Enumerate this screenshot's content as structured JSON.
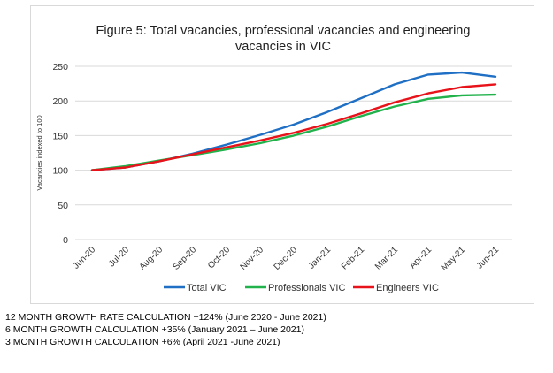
{
  "chart_data": {
    "type": "line",
    "title_line1": "Figure 5: Total vacancies, professional vacancies and engineering",
    "title_line2": "vacancies in VIC",
    "ylabel": "Vacancies indexed to 100",
    "xlabel": "",
    "categories": [
      "Jun-20",
      "Jul-20",
      "Aug-20",
      "Sep-20",
      "Oct-20",
      "Nov-20",
      "Dec-20",
      "Jan-21",
      "Feb-21",
      "Mar-21",
      "Apr-21",
      "May-21",
      "Jun-21"
    ],
    "ylim": [
      0,
      250
    ],
    "yticks": [
      "0",
      "50",
      "100",
      "150",
      "200",
      "250"
    ],
    "grid": true,
    "legend_position": "bottom",
    "series": [
      {
        "name": "Total VIC",
        "color": "#1f6fc5",
        "values": [
          100,
          104,
          113,
          124,
          137,
          151,
          166,
          184,
          204,
          224,
          238,
          241,
          235
        ]
      },
      {
        "name": "Professionals VIC",
        "color": "#22b24c",
        "values": [
          100,
          106,
          114,
          122,
          130,
          139,
          150,
          163,
          178,
          192,
          203,
          208,
          209
        ]
      },
      {
        "name": "Engineers VIC",
        "color": "#e8131a",
        "values": [
          100,
          104,
          113,
          123,
          133,
          143,
          154,
          167,
          182,
          198,
          211,
          220,
          224
        ]
      }
    ]
  },
  "notes": [
    "12 MONTH GROWTH RATE CALCULATION +124% (June 2020 - June 2021)",
    "6 MONTH GROWTH CALCULATION +35% (January 2021 – June 2021)",
    "3 MONTH GROWTH CALCULATION +6% (April 2021 -June 2021)"
  ]
}
